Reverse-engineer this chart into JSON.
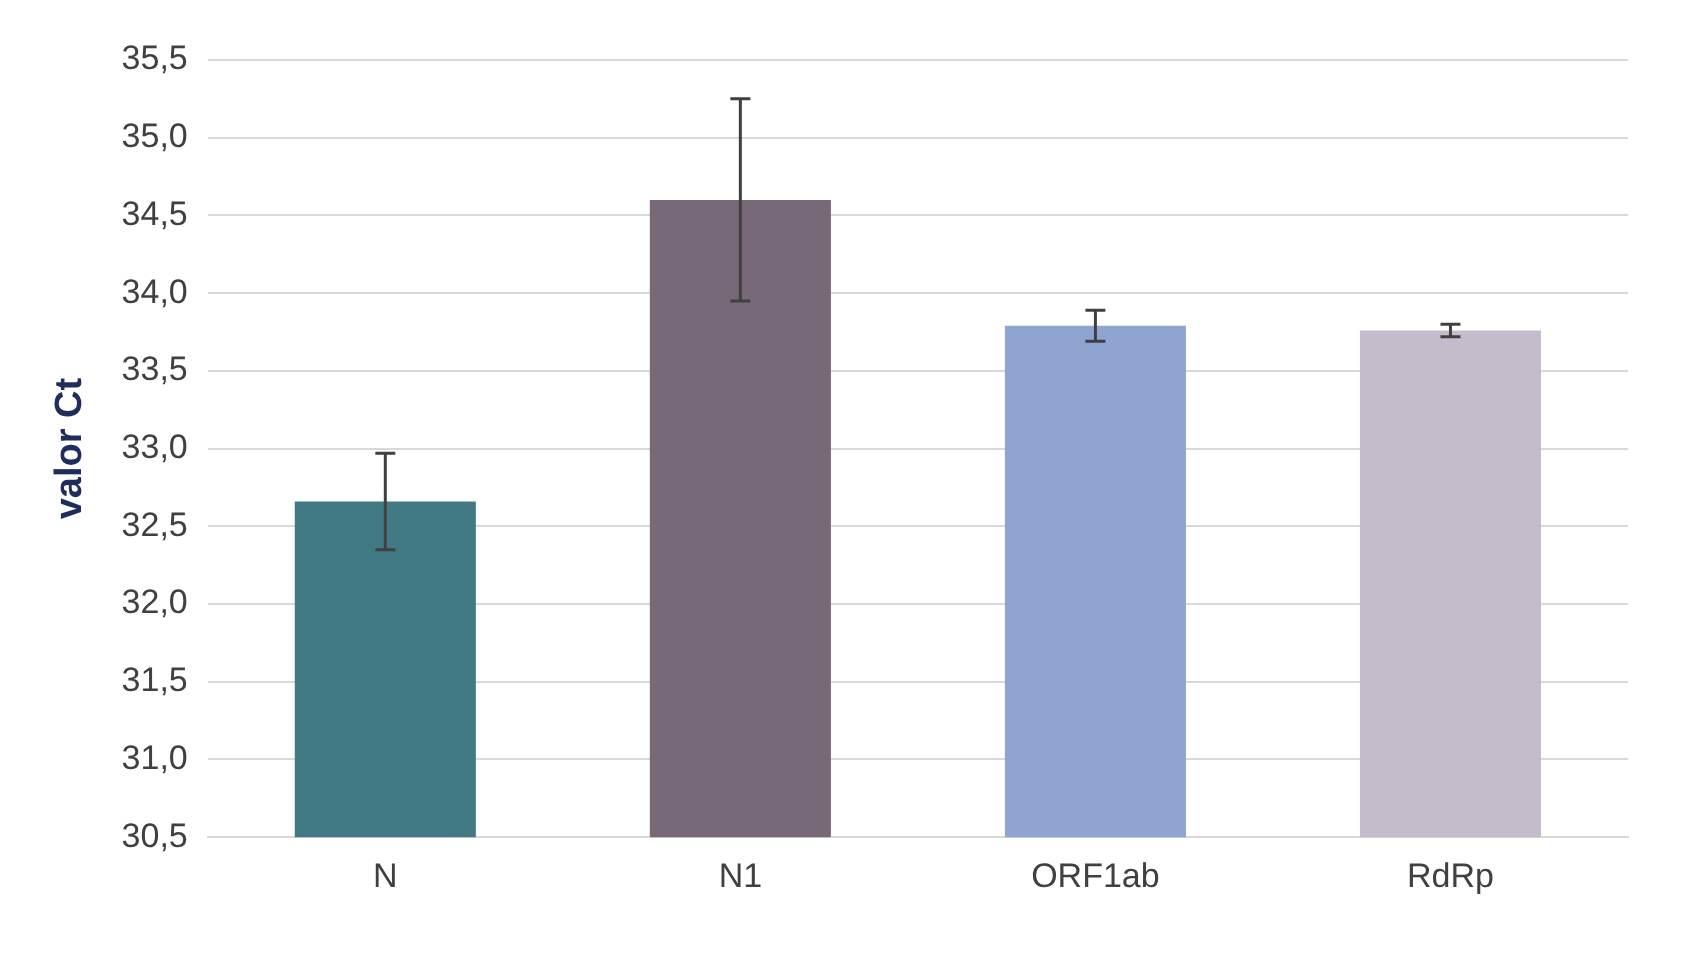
{
  "chart_data": {
    "type": "bar",
    "ylabel": "valor Ct",
    "categories": [
      "N",
      "N1",
      "ORF1ab",
      "RdRp"
    ],
    "values": [
      32.66,
      34.6,
      33.79,
      33.76
    ],
    "colors": [
      "#417a84",
      "#776977",
      "#8fa4d0",
      "#c4bccb"
    ],
    "errors": [
      0.31,
      0.65,
      0.1,
      0.04
    ],
    "ylim": [
      30.5,
      35.5
    ],
    "yticks": [
      {
        "value": 30.5,
        "label": "30,5"
      },
      {
        "value": 31,
        "label": "31,0"
      },
      {
        "value": 31.5,
        "label": "31,5"
      },
      {
        "value": 32,
        "label": "32,0"
      },
      {
        "value": 32.5,
        "label": "32,5"
      },
      {
        "value": 33,
        "label": "33,0"
      },
      {
        "value": 33.5,
        "label": "33,5"
      },
      {
        "value": 34,
        "label": "34,0"
      },
      {
        "value": 34.5,
        "label": "34,5"
      },
      {
        "value": 35,
        "label": "35,0"
      },
      {
        "value": 35.5,
        "label": "35,5"
      }
    ],
    "grid": "y",
    "legend": false
  }
}
